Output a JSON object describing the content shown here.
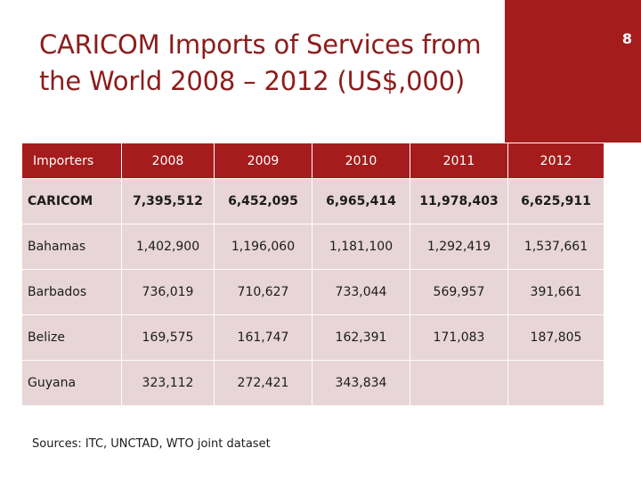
{
  "slide": {
    "title": "CARICOM Imports of Services from the World 2008 – 2012 (US$,000)",
    "number": "8",
    "sources": "Sources: ITC, UNCTAD, WTO joint dataset"
  },
  "colors": {
    "accent": "#a51c1c",
    "title": "#8c1c1c",
    "cell": "#e7d5d7"
  },
  "table": {
    "columns": [
      "Importers",
      "2008",
      "2009",
      "2010",
      "2011",
      "2012"
    ],
    "rows": [
      {
        "cells": [
          "CARICOM",
          "7,395,512",
          "6,452,095",
          "6,965,414",
          "11,978,403",
          "6,625,911"
        ]
      },
      {
        "cells": [
          "Bahamas",
          "1,402,900",
          "1,196,060",
          "1,181,100",
          "1,292,419",
          "1,537,661"
        ]
      },
      {
        "cells": [
          "Barbados",
          "736,019",
          "710,627",
          "733,044",
          "569,957",
          "391,661"
        ]
      },
      {
        "cells": [
          "Belize",
          "169,575",
          "161,747",
          "162,391",
          "171,083",
          "187,805"
        ]
      },
      {
        "cells": [
          "Guyana",
          "323,112",
          "272,421",
          "343,834",
          "",
          ""
        ]
      }
    ]
  }
}
